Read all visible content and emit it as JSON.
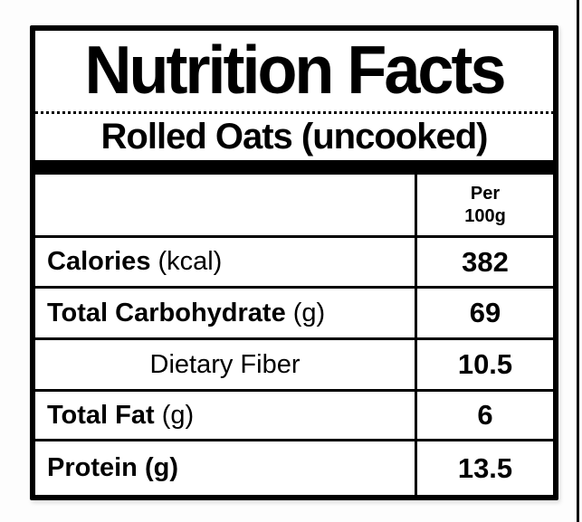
{
  "label": {
    "title": "Nutrition Facts",
    "subtitle": "Rolled Oats (uncooked)",
    "value_column_header": {
      "line1": "Per",
      "line2": "100g"
    },
    "rows": [
      {
        "name": "Calories",
        "unit": "(kcal)",
        "value": "382"
      },
      {
        "name": "Total Carbohydrate",
        "unit": "(g)",
        "value": "69"
      },
      {
        "name": "Dietary Fiber",
        "unit": "",
        "value": "10.5"
      },
      {
        "name": "Total Fat",
        "unit": "(g)",
        "value": "6"
      },
      {
        "name": "Protein (g)",
        "unit": "",
        "value": "13.5"
      }
    ],
    "colors": {
      "text": "#000000",
      "border": "#000000",
      "label_background": "#ffffff",
      "page_background": "#fdfdfd"
    }
  }
}
